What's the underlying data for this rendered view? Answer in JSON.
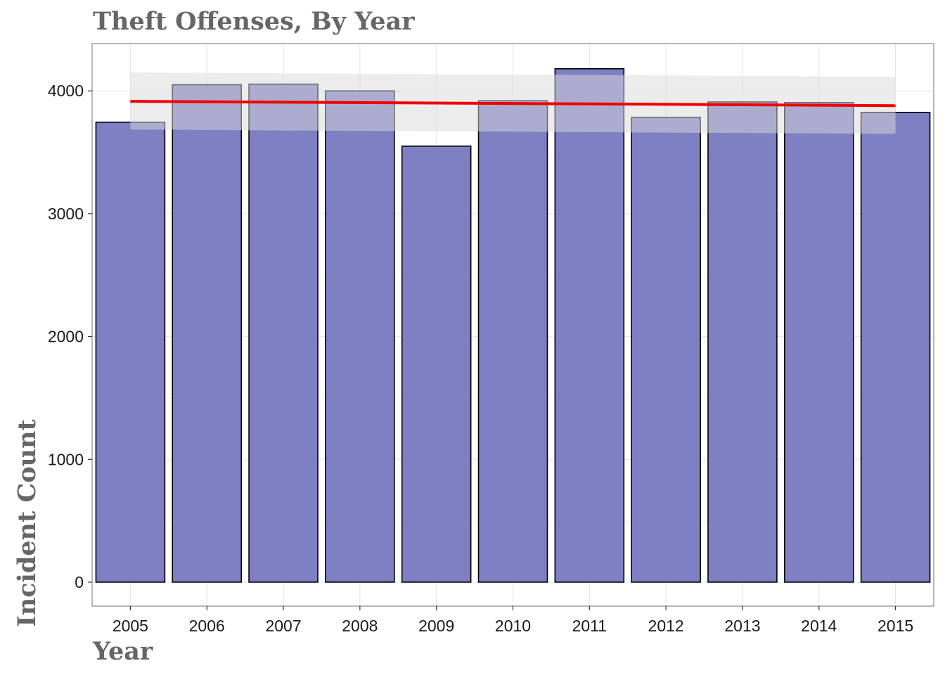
{
  "chart_data": {
    "type": "bar",
    "title": "Theft Offenses, By Year",
    "xlabel": "Year",
    "ylabel": "Incident Count",
    "categories": [
      "2005",
      "2006",
      "2007",
      "2008",
      "2009",
      "2010",
      "2011",
      "2012",
      "2013",
      "2014",
      "2015"
    ],
    "values": [
      3745,
      4050,
      4055,
      4000,
      3550,
      3920,
      4180,
      3785,
      3910,
      3905,
      3825
    ],
    "ylim": [
      -195,
      4385
    ],
    "yticks": [
      0,
      1000,
      2000,
      3000,
      4000
    ],
    "grid": true,
    "bar_color": "#7f7fc4",
    "bar_outline": "#000000",
    "trend_line": {
      "color": "#ee0000",
      "x_range": [
        "2005",
        "2015"
      ],
      "y_start": 3915,
      "y_end": 3880,
      "band_upper_start": 4150,
      "band_upper_end": 4115,
      "band_lower_start": 3685,
      "band_lower_end": 3650,
      "band_color": "#d9d9d9"
    }
  }
}
